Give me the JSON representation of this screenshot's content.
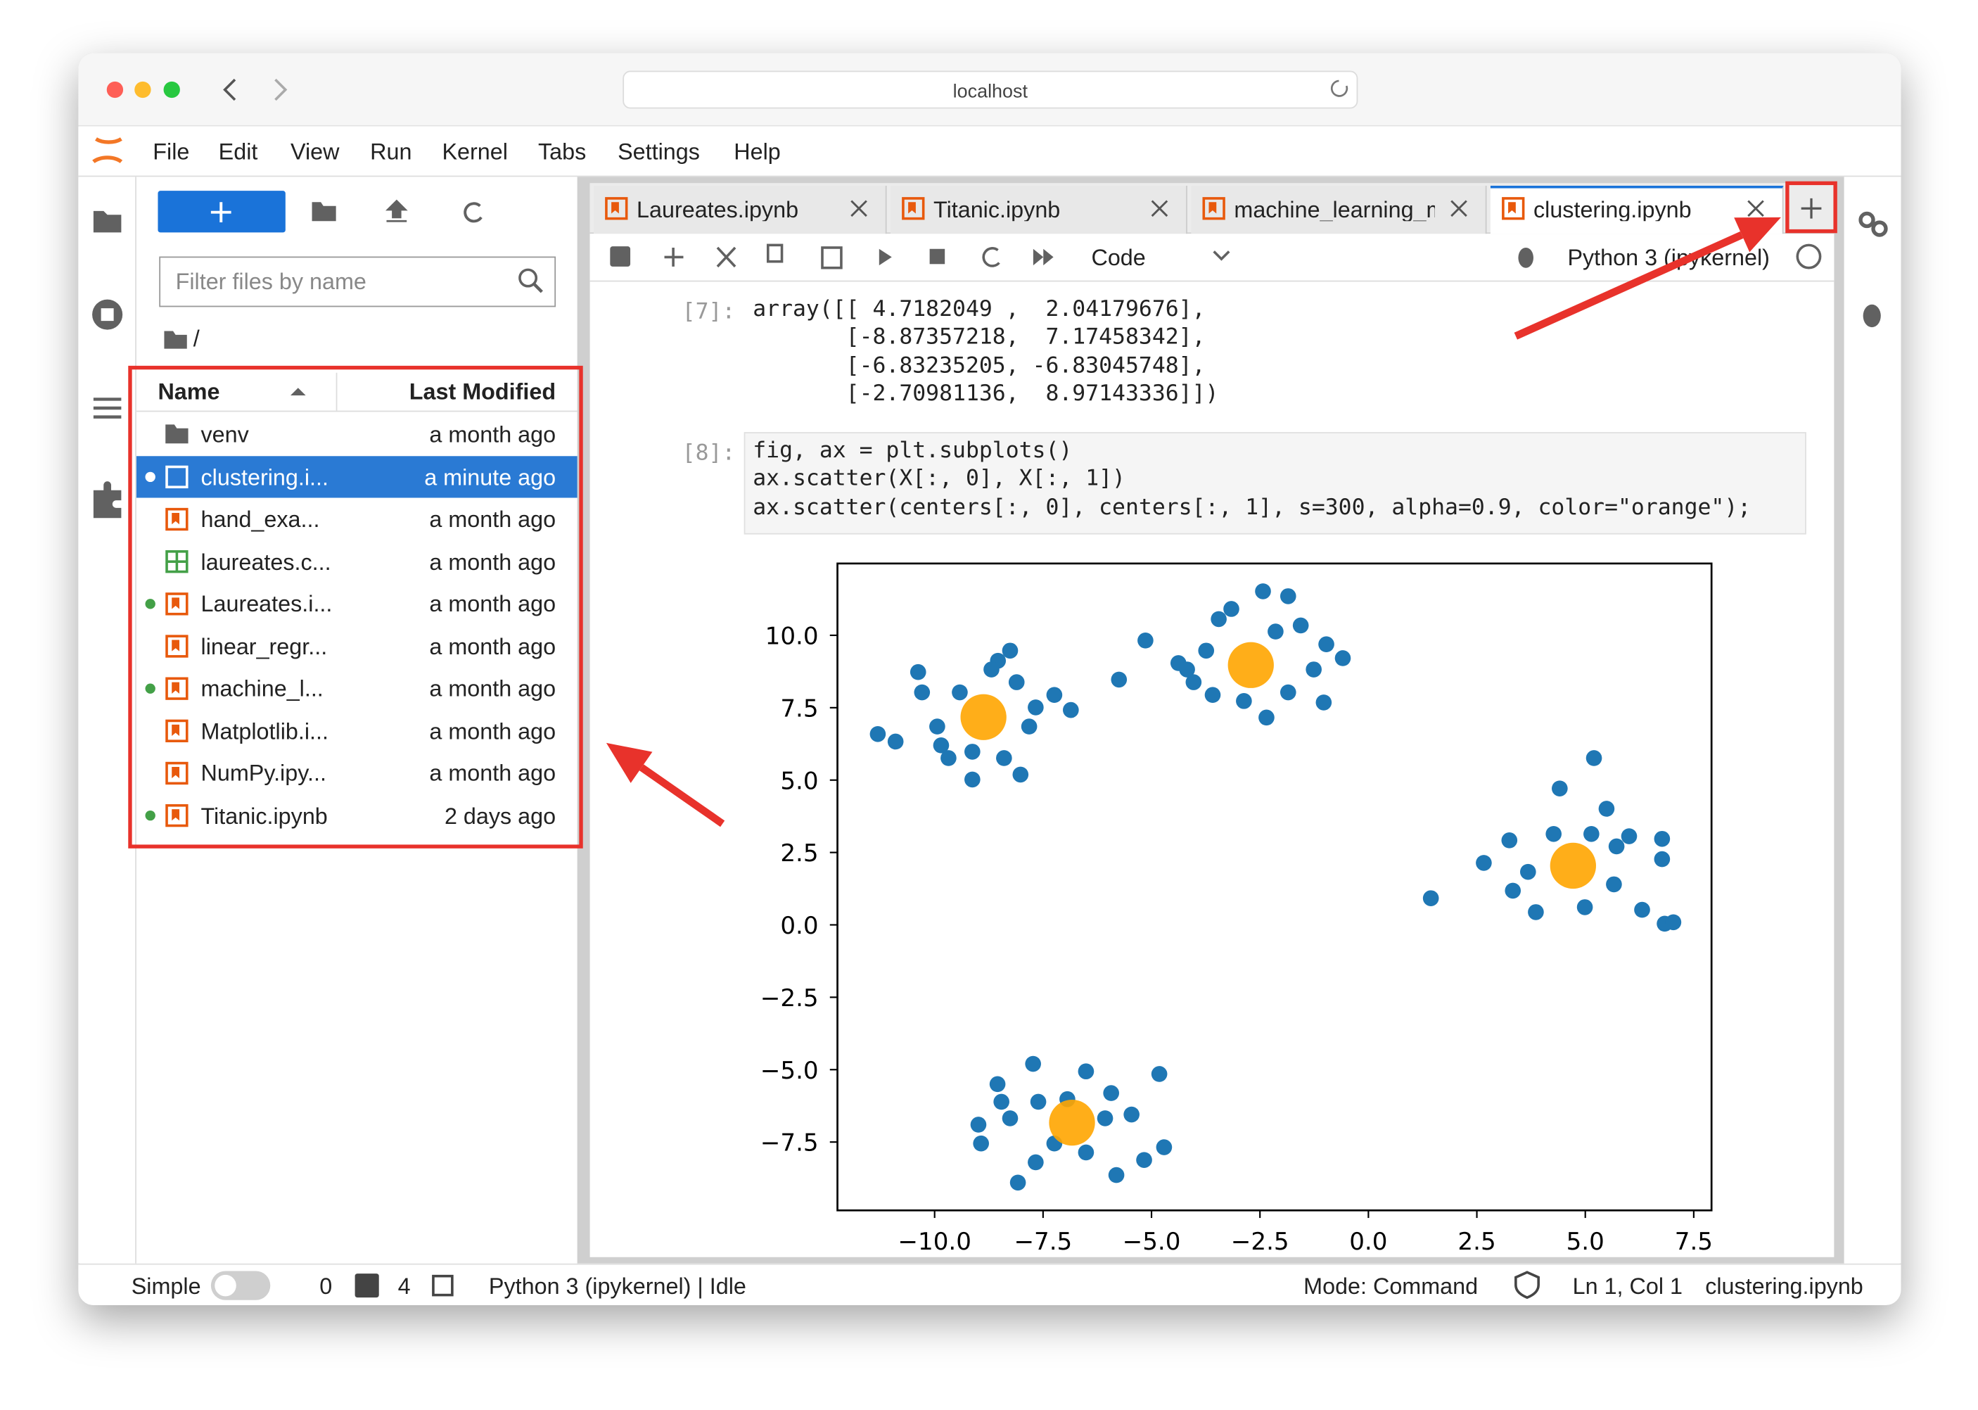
{
  "browser": {
    "url": "localhost"
  },
  "menu": [
    "File",
    "Edit",
    "View",
    "Run",
    "Kernel",
    "Tabs",
    "Settings",
    "Help"
  ],
  "file_browser": {
    "filter_placeholder": "Filter files by name",
    "path": "/",
    "columns": [
      "Name",
      "Last Modified"
    ],
    "files": [
      {
        "name": "venv",
        "modified": "a month ago",
        "kind": "folder",
        "running": false,
        "selected": false
      },
      {
        "name": "clustering.i...",
        "modified": "a minute ago",
        "kind": "notebook",
        "running": true,
        "selected": true
      },
      {
        "name": "hand_exa...",
        "modified": "a month ago",
        "kind": "notebook",
        "running": false,
        "selected": false
      },
      {
        "name": "laureates.c...",
        "modified": "a month ago",
        "kind": "csv",
        "running": false,
        "selected": false
      },
      {
        "name": "Laureates.i...",
        "modified": "a month ago",
        "kind": "notebook",
        "running": true,
        "selected": false
      },
      {
        "name": "linear_regr...",
        "modified": "a month ago",
        "kind": "notebook",
        "running": false,
        "selected": false
      },
      {
        "name": "machine_l...",
        "modified": "a month ago",
        "kind": "notebook",
        "running": true,
        "selected": false
      },
      {
        "name": "Matplotlib.i...",
        "modified": "a month ago",
        "kind": "notebook",
        "running": false,
        "selected": false
      },
      {
        "name": "NumPy.ipy...",
        "modified": "a month ago",
        "kind": "notebook",
        "running": false,
        "selected": false
      },
      {
        "name": "Titanic.ipynb",
        "modified": "2 days ago",
        "kind": "notebook",
        "running": true,
        "selected": false
      }
    ]
  },
  "tabs": [
    {
      "name": "Laureates.ipynb",
      "active": false
    },
    {
      "name": "Titanic.ipynb",
      "active": false
    },
    {
      "name": "machine_learning_m",
      "active": false
    },
    {
      "name": "clustering.ipynb",
      "active": true
    }
  ],
  "toolbar": {
    "cell_type": "Code",
    "kernel": "Python 3 (ipykernel)"
  },
  "cells": [
    {
      "prompt": "[7]:",
      "kind": "output",
      "lines": [
        "array([[ 4.7182049 ,  2.04179676],",
        "       [-8.87357218,  7.17458342],",
        "       [-6.83235205, -6.83045748],",
        "       [-2.70981136,  8.97143336]])"
      ]
    },
    {
      "prompt": "[8]:",
      "kind": "code",
      "lines": [
        "fig, ax = plt.subplots()",
        "ax.scatter(X[:, 0], X[:, 1])",
        "ax.scatter(centers[:, 0], centers[:, 1], s=300, alpha=0.9, color=\"orange\");"
      ]
    }
  ],
  "chart_data": {
    "type": "scatter",
    "xlim": [
      -12.24,
      7.91
    ],
    "ylim": [
      -9.86,
      12.48
    ],
    "xticks": [
      {
        "value": -10,
        "label": "−10.0"
      },
      {
        "value": -7.5,
        "label": "−7.5"
      },
      {
        "value": -5,
        "label": "−5.0"
      },
      {
        "value": -2.5,
        "label": "−2.5"
      },
      {
        "value": 0,
        "label": "0.0"
      },
      {
        "value": 2.5,
        "label": "2.5"
      },
      {
        "value": 5,
        "label": "5.0"
      },
      {
        "value": 7.5,
        "label": "7.5"
      }
    ],
    "yticks": [
      {
        "value": -7.5,
        "label": "−7.5"
      },
      {
        "value": -5,
        "label": "−5.0"
      },
      {
        "value": -2.5,
        "label": "−2.5"
      },
      {
        "value": 0,
        "label": "0.0"
      },
      {
        "value": 2.5,
        "label": "2.5"
      },
      {
        "value": 5,
        "label": "5.0"
      },
      {
        "value": 7.5,
        "label": "7.5"
      },
      {
        "value": 10,
        "label": "10.0"
      }
    ],
    "series": [
      {
        "color": "#1f77b4",
        "size": 36,
        "alpha": 1,
        "x": [
          -11.31,
          -10.9,
          -10.38,
          -10.29,
          -9.94,
          -9.68,
          -9.13,
          -8.02,
          -8.26,
          -8.54,
          -7.67,
          -6.86,
          -7.24,
          -9.42,
          -8.69,
          -9.85,
          -7.82,
          -8.4,
          -9.13,
          -8.11,
          -5.14,
          -5.75,
          -4.38,
          -4.03,
          -3.45,
          -3.16,
          -2.43,
          -1.85,
          -1.56,
          -0.97,
          -0.59,
          -1.03,
          -1.85,
          -2.35,
          -2.87,
          -3.59,
          -4.18,
          -2.14,
          -1.26,
          -3.74,
          1.44,
          2.66,
          3.25,
          4.41,
          5.2,
          5.49,
          6.01,
          6.77,
          6.77,
          6.31,
          6.83,
          7.03,
          5.66,
          4.99,
          3.86,
          3.33,
          3.68,
          4.27,
          5.72,
          5.14,
          -8.99,
          -8.93,
          -8.55,
          -8.46,
          -7.73,
          -7.61,
          -8.08,
          -7.67,
          -6.51,
          -5.93,
          -5.46,
          -4.82,
          -4.71,
          -5.17,
          -5.81,
          -6.51,
          -7.24,
          -6.07,
          -6.94,
          -8.26
        ],
        "y": [
          6.59,
          6.33,
          8.73,
          8.03,
          6.85,
          5.76,
          5.02,
          5.19,
          9.47,
          9.12,
          7.51,
          7.42,
          7.94,
          8.03,
          8.82,
          6.2,
          6.85,
          5.76,
          5.98,
          8.38,
          9.82,
          8.47,
          9.04,
          8.38,
          10.56,
          10.91,
          11.52,
          11.35,
          10.34,
          9.69,
          9.21,
          7.68,
          8.03,
          7.16,
          7.73,
          7.94,
          8.82,
          10.13,
          8.82,
          9.47,
          0.92,
          2.14,
          2.92,
          4.71,
          5.76,
          4.01,
          3.06,
          2.97,
          2.27,
          0.52,
          0.04,
          0.09,
          1.4,
          0.61,
          0.44,
          1.18,
          1.83,
          3.14,
          2.71,
          3.14,
          -6.9,
          -7.55,
          -5.5,
          -6.11,
          -4.8,
          -6.11,
          -8.9,
          -8.2,
          -5.06,
          -5.81,
          -6.55,
          -5.15,
          -7.68,
          -8.12,
          -8.64,
          -7.86,
          -7.55,
          -6.68,
          -6.02,
          -6.68
        ]
      },
      {
        "color": "#ffa500",
        "size": 300,
        "alpha": 0.9,
        "x": [
          4.7182049,
          -8.87357218,
          -6.83235205,
          -2.70981136
        ],
        "y": [
          2.04179676,
          7.17458342,
          -6.83045748,
          8.97143336
        ]
      }
    ]
  },
  "status_bar": {
    "mode_label": "Simple",
    "terminals": 0,
    "kernels": 4,
    "kernel_status": "Python 3 (ipykernel) | Idle",
    "mode": "Mode: Command",
    "position": "Ln 1, Col 1",
    "file": "clustering.ipynb"
  }
}
